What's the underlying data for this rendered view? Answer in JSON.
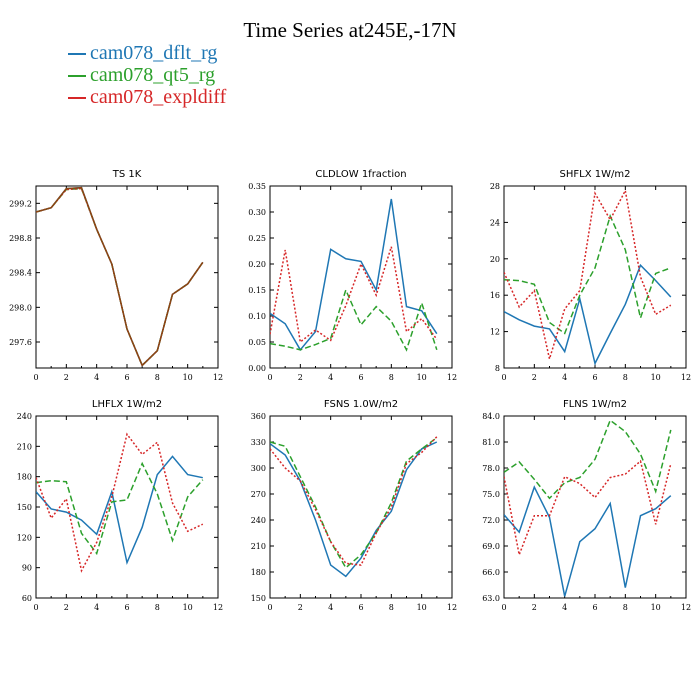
{
  "title": "Time Series at245E,-17N",
  "legend": [
    {
      "name": "cam078_dflt_rg",
      "color": "#1f77b4"
    },
    {
      "name": "cam078_qt5_rg",
      "color": "#2ca02c"
    },
    {
      "name": "cam078_expldiff",
      "color": "#d62728"
    }
  ],
  "chart_data": [
    {
      "type": "line",
      "title": "TS   1K",
      "xlim": [
        0,
        12
      ],
      "xticks": [
        0,
        2,
        4,
        6,
        8,
        10,
        12
      ],
      "ylim": [
        297.3,
        299.4
      ],
      "yticks": [
        "297.6",
        "298.0",
        "298.4",
        "298.8",
        "299.2"
      ],
      "x": [
        0,
        1,
        2,
        3,
        4,
        5,
        6,
        7,
        8,
        9,
        10,
        11
      ],
      "series": [
        {
          "color": "#1f77b4",
          "dash": "none",
          "values": [
            299.1,
            299.15,
            299.37,
            299.38,
            298.9,
            298.5,
            297.75,
            297.33,
            297.5,
            298.15,
            298.27,
            298.52
          ]
        },
        {
          "color": "#2ca02c",
          "dash": "6,3",
          "values": [
            299.1,
            299.15,
            299.36,
            299.37,
            298.9,
            298.5,
            297.75,
            297.33,
            297.5,
            298.15,
            298.27,
            298.52
          ]
        },
        {
          "color": "#d62728",
          "dash": "2,2",
          "values": [
            299.1,
            299.15,
            299.36,
            299.37,
            298.9,
            298.5,
            297.75,
            297.33,
            297.5,
            298.15,
            298.27,
            298.52
          ]
        },
        {
          "color": "#8b4513",
          "dash": "none",
          "values": [
            299.1,
            299.15,
            299.37,
            299.38,
            298.9,
            298.5,
            297.75,
            297.33,
            297.5,
            298.15,
            298.27,
            298.52
          ]
        }
      ]
    },
    {
      "type": "line",
      "title": "CLDLOW    1fraction",
      "xlim": [
        0,
        12
      ],
      "xticks": [
        0,
        2,
        4,
        6,
        8,
        10,
        12
      ],
      "ylim": [
        0,
        0.35
      ],
      "yticks": [
        "0.00",
        "0.05",
        "0.10",
        "0.15",
        "0.20",
        "0.25",
        "0.30",
        "0.35"
      ],
      "x": [
        0,
        1,
        2,
        3,
        4,
        5,
        6,
        7,
        8,
        9,
        10,
        11
      ],
      "series": [
        {
          "color": "#1f77b4",
          "dash": "none",
          "values": [
            0.105,
            0.085,
            0.035,
            0.07,
            0.228,
            0.21,
            0.205,
            0.15,
            0.325,
            0.118,
            0.11,
            0.066
          ]
        },
        {
          "color": "#2ca02c",
          "dash": "6,3",
          "values": [
            0.047,
            0.042,
            0.035,
            0.045,
            0.057,
            0.15,
            0.083,
            0.118,
            0.09,
            0.035,
            0.125,
            0.035
          ]
        },
        {
          "color": "#d62728",
          "dash": "2,2",
          "values": [
            0.065,
            0.227,
            0.05,
            0.073,
            0.053,
            0.12,
            0.2,
            0.14,
            0.233,
            0.07,
            0.095,
            0.055
          ]
        }
      ]
    },
    {
      "type": "line",
      "title": "SHFLX    1W/m2",
      "xlim": [
        0,
        12
      ],
      "xticks": [
        0,
        2,
        4,
        6,
        8,
        10,
        12
      ],
      "ylim": [
        8,
        28
      ],
      "yticks": [
        "8",
        "12",
        "16",
        "20",
        "24",
        "28"
      ],
      "x": [
        0,
        1,
        2,
        3,
        4,
        5,
        6,
        7,
        8,
        9,
        10,
        11
      ],
      "series": [
        {
          "color": "#1f77b4",
          "dash": "none",
          "values": [
            14.2,
            13.3,
            12.6,
            12.3,
            9.8,
            15.6,
            8.5,
            11.8,
            15.0,
            19.3,
            17.6,
            15.8
          ]
        },
        {
          "color": "#2ca02c",
          "dash": "6,3",
          "values": [
            17.7,
            17.6,
            17.2,
            13.0,
            11.8,
            16.0,
            19.0,
            24.7,
            21.0,
            13.5,
            18.4,
            19.0
          ]
        },
        {
          "color": "#d62728",
          "dash": "2,2",
          "values": [
            18.5,
            14.7,
            16.5,
            9.0,
            14.5,
            16.5,
            27.2,
            24.3,
            27.5,
            18.0,
            13.9,
            14.9
          ]
        }
      ]
    },
    {
      "type": "line",
      "title": "LHFLX    1W/m2",
      "xlim": [
        0,
        12
      ],
      "xticks": [
        0,
        2,
        4,
        6,
        8,
        10,
        12
      ],
      "ylim": [
        60,
        240
      ],
      "yticks": [
        "60",
        "90",
        "120",
        "150",
        "180",
        "210",
        "240"
      ],
      "x": [
        0,
        1,
        2,
        3,
        4,
        5,
        6,
        7,
        8,
        9,
        10,
        11
      ],
      "series": [
        {
          "color": "#1f77b4",
          "dash": "none",
          "values": [
            165,
            148,
            145,
            137,
            123,
            165,
            95,
            130,
            182,
            200,
            182,
            179
          ]
        },
        {
          "color": "#2ca02c",
          "dash": "6,3",
          "values": [
            174,
            176,
            175,
            124,
            104,
            155,
            157,
            193,
            163,
            117,
            160,
            177
          ]
        },
        {
          "color": "#d62728",
          "dash": "2,2",
          "values": [
            179,
            139,
            158,
            87,
            115,
            160,
            222,
            202,
            214,
            154,
            126,
            133
          ]
        }
      ]
    },
    {
      "type": "line",
      "title": "FSNS    1.0W/m2",
      "xlim": [
        0,
        12
      ],
      "xticks": [
        0,
        2,
        4,
        6,
        8,
        10,
        12
      ],
      "ylim": [
        150,
        360
      ],
      "yticks": [
        "150",
        "180",
        "210",
        "240",
        "270",
        "300",
        "330",
        "360"
      ],
      "x": [
        0,
        1,
        2,
        3,
        4,
        5,
        6,
        7,
        8,
        9,
        10,
        11
      ],
      "series": [
        {
          "color": "#1f77b4",
          "dash": "none",
          "values": [
            328,
            315,
            285,
            240,
            188,
            175,
            196,
            228,
            250,
            298,
            322,
            330
          ]
        },
        {
          "color": "#2ca02c",
          "dash": "6,3",
          "values": [
            330,
            325,
            290,
            255,
            215,
            185,
            200,
            225,
            260,
            308,
            322,
            335
          ]
        },
        {
          "color": "#d62728",
          "dash": "2,2",
          "values": [
            322,
            300,
            285,
            252,
            215,
            190,
            188,
            225,
            255,
            305,
            318,
            336
          ]
        }
      ]
    },
    {
      "type": "line",
      "title": "FLNS    1W/m2",
      "xlim": [
        0,
        12
      ],
      "xticks": [
        0,
        2,
        4,
        6,
        8,
        10,
        12
      ],
      "ylim": [
        63,
        84
      ],
      "yticks": [
        "63.0",
        "66.0",
        "69.0",
        "72.0",
        "75.0",
        "78.0",
        "81.0",
        "84.0"
      ],
      "x": [
        0,
        1,
        2,
        3,
        4,
        5,
        6,
        7,
        8,
        9,
        10,
        11
      ],
      "series": [
        {
          "color": "#1f77b4",
          "dash": "none",
          "values": [
            72.6,
            70.6,
            75.8,
            72.3,
            63.2,
            69.5,
            71.0,
            73.9,
            64.2,
            72.5,
            73.3,
            74.8
          ]
        },
        {
          "color": "#2ca02c",
          "dash": "6,3",
          "values": [
            77.5,
            78.7,
            76.7,
            74.5,
            76.3,
            76.9,
            79.0,
            83.5,
            82.2,
            79.6,
            75.3,
            82.4
          ]
        },
        {
          "color": "#d62728",
          "dash": "2,2",
          "values": [
            77.0,
            68.0,
            72.5,
            72.5,
            77.0,
            76.2,
            74.6,
            76.9,
            77.3,
            78.8,
            71.5,
            78.5
          ]
        }
      ]
    }
  ]
}
